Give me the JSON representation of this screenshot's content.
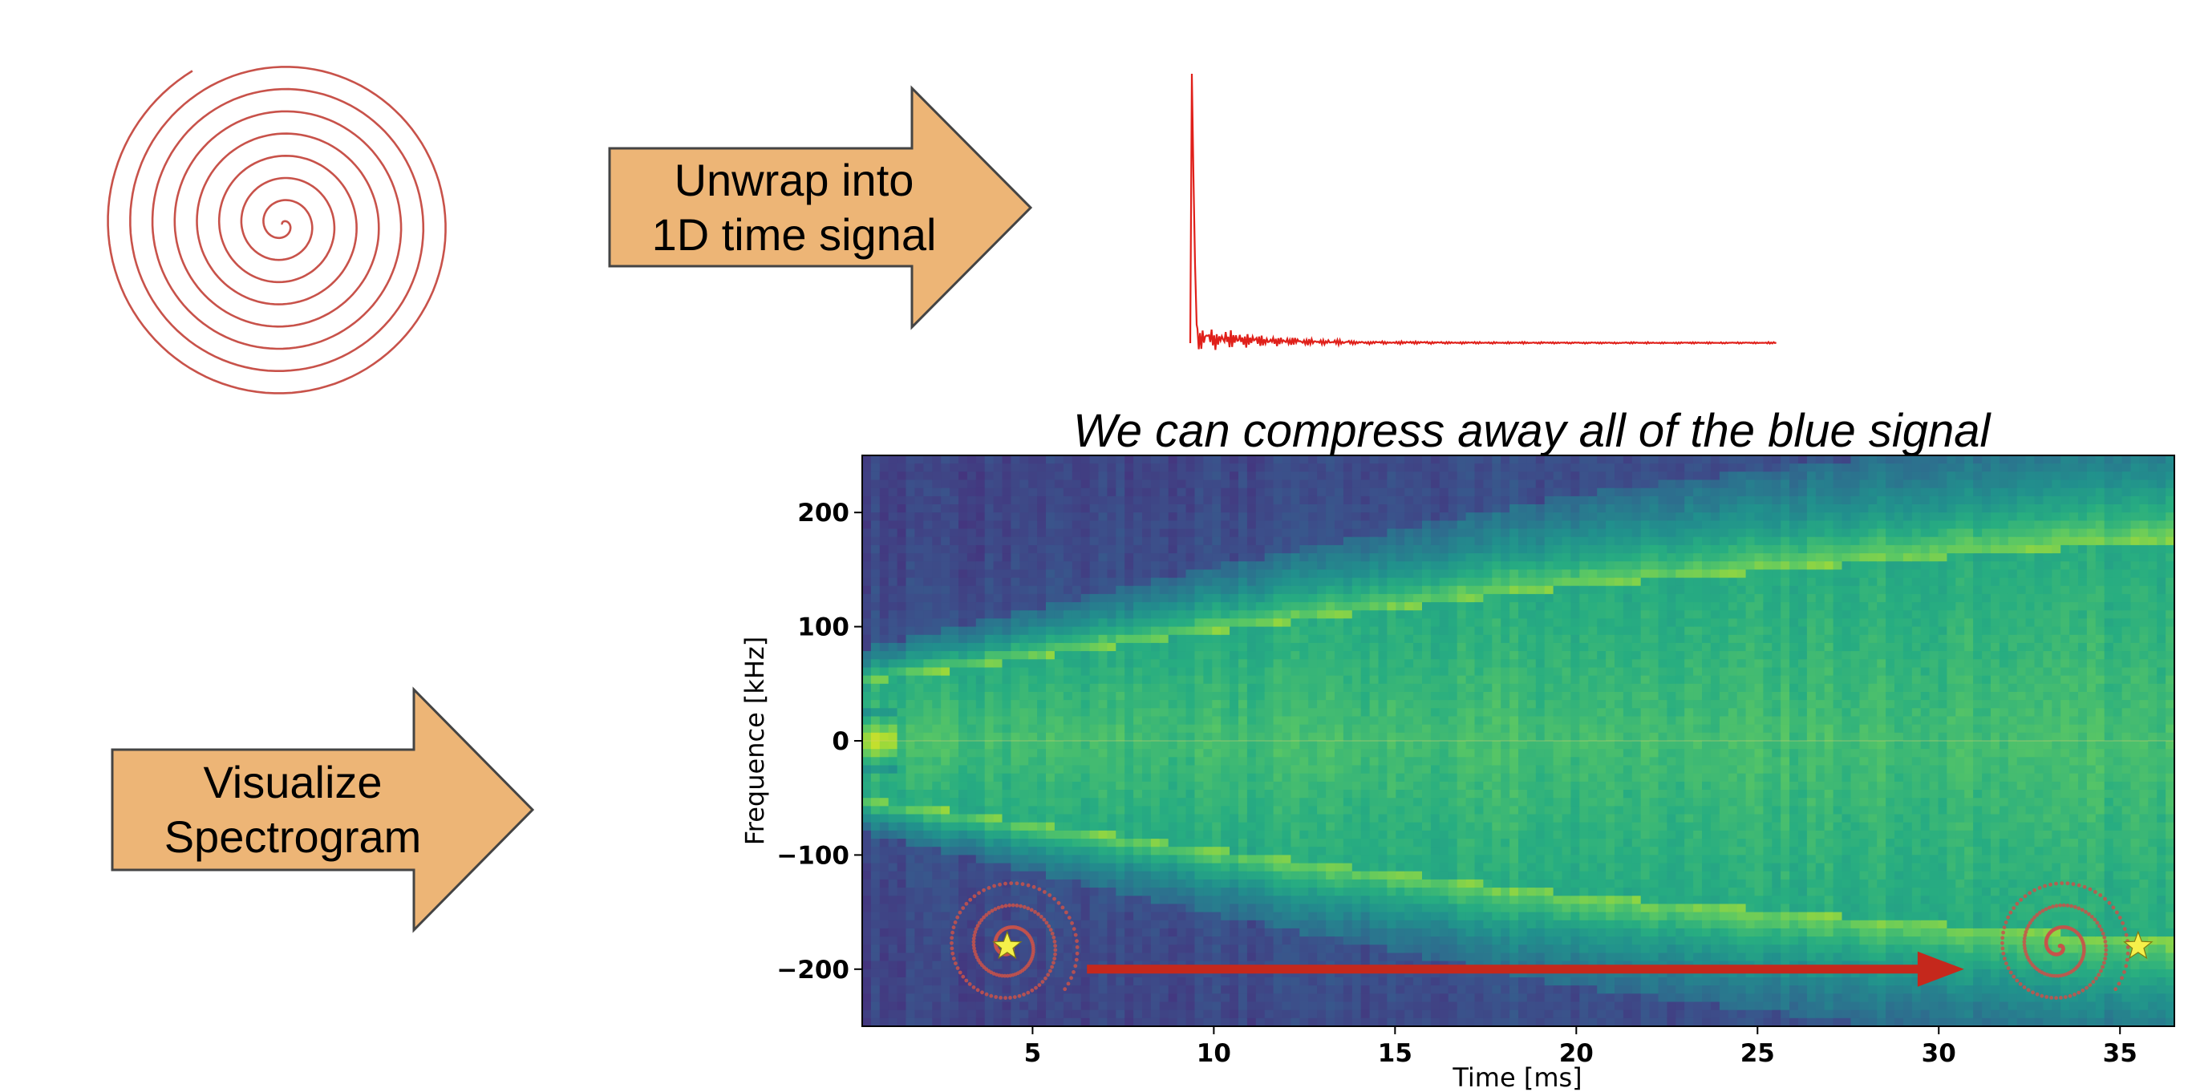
{
  "arrows": {
    "unwrap": {
      "line1": "Unwrap into",
      "line2": "1D time signal"
    },
    "visualize": {
      "line1": "Visualize",
      "line2": "Spectrogram"
    }
  },
  "colors": {
    "arrow_fill": "#EDB576",
    "arrow_stroke": "#444444",
    "spiral": "#C8524A",
    "signal": "#E0201A",
    "trajectory_arrow": "#C5281C",
    "star": "#F5F04A"
  },
  "spectrogram": {
    "title": "We can compress away all of the blue signal"
  },
  "chart_data": {
    "type": "heatmap",
    "title": "We can compress away all of the blue signal",
    "xlabel": "Time [ms]",
    "ylabel": "Frequence [kHz]",
    "xlim": [
      0.3,
      36.5
    ],
    "ylim": [
      -250,
      250
    ],
    "xticks": [
      5,
      10,
      15,
      20,
      25,
      30,
      35
    ],
    "yticks": [
      200,
      100,
      0,
      -100,
      -200
    ],
    "ytick_labels": [
      "200",
      "100",
      "0",
      "−100",
      "−200"
    ],
    "colormap": "viridis",
    "band_halfwidth_khz": [
      {
        "t": 0.3,
        "halfwidth": 50
      },
      {
        "t": 10,
        "halfwidth": 95
      },
      {
        "t": 20,
        "halfwidth": 135
      },
      {
        "t": 30,
        "halfwidth": 160
      },
      {
        "t": 36.5,
        "halfwidth": 175
      }
    ],
    "annotations": {
      "start_star": {
        "t": 4.3,
        "f": -180
      },
      "end_star": {
        "t": 35.5,
        "f": -180
      },
      "arrow": {
        "t_start": 6.5,
        "t_end": 30.7,
        "f": -200
      }
    }
  }
}
